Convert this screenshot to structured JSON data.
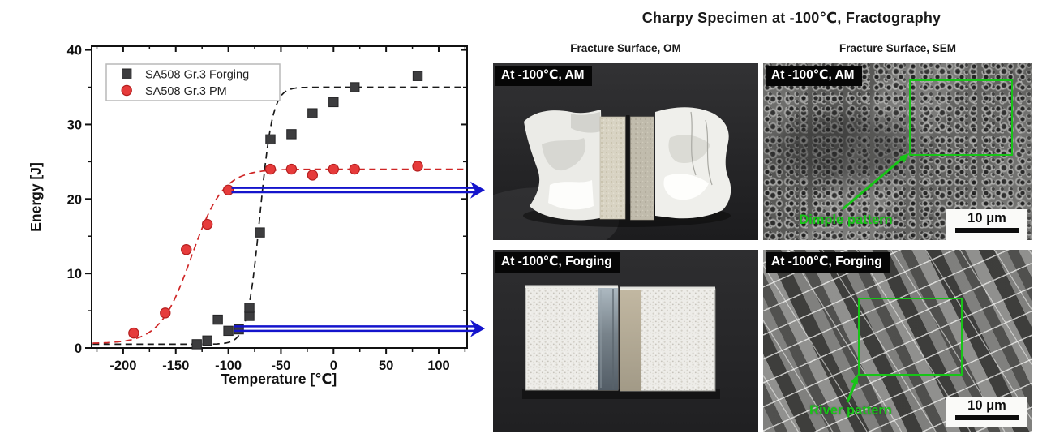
{
  "chart_data": {
    "type": "scatter",
    "title": "",
    "xlabel": "Temperature [℃]",
    "ylabel": "Energy [J]",
    "xlim": [
      -230,
      127
    ],
    "ylim": [
      0,
      40.5
    ],
    "x_ticks": [
      -200,
      -150,
      -100,
      -50,
      0,
      50,
      100
    ],
    "y_ticks": [
      0,
      10,
      20,
      30,
      40
    ],
    "x_minor_step": 25,
    "y_minor_step": 5,
    "grid": false,
    "legend_position": "top-left",
    "series": [
      {
        "name": "SA508 Gr.3 Forging",
        "marker": "square",
        "color": "#3d3d3f",
        "edge_color": "#242426",
        "line_color": "#1a1a1a",
        "line_style": "dashed",
        "points": [
          [
            -130,
            0.5
          ],
          [
            -120,
            1.0
          ],
          [
            -110,
            3.8
          ],
          [
            -100,
            2.3
          ],
          [
            -90,
            2.5
          ],
          [
            -80,
            4.3
          ],
          [
            -80,
            5.4
          ],
          [
            -70,
            15.5
          ],
          [
            -60,
            28.0
          ],
          [
            -40,
            28.7
          ],
          [
            -20,
            31.5
          ],
          [
            0,
            33.0
          ],
          [
            20,
            35.0
          ],
          [
            80,
            36.5
          ]
        ],
        "fit_sigmoid": {
          "lower": 0.5,
          "upper": 35.0,
          "t0": -70,
          "width": 6
        }
      },
      {
        "name": "SA508 Gr.3 PM",
        "marker": "circle",
        "color": "#e63b3b",
        "edge_color": "#b51f1f",
        "line_color": "#cf2626",
        "line_style": "dashed",
        "points": [
          [
            -190,
            2.0
          ],
          [
            -160,
            4.7
          ],
          [
            -140,
            13.2
          ],
          [
            -120,
            16.6
          ],
          [
            -100,
            21.2
          ],
          [
            -60,
            24.0
          ],
          [
            -40,
            24.0
          ],
          [
            -20,
            23.2
          ],
          [
            0,
            24.0
          ],
          [
            20,
            24.0
          ],
          [
            80,
            24.4
          ]
        ],
        "fit_sigmoid": {
          "lower": 0.6,
          "upper": 24.0,
          "t0": -135,
          "width": 15
        }
      }
    ],
    "arrows": [
      {
        "y": 21.2,
        "from_x": -97,
        "color": "#1414cc",
        "points_to": "AM fractography at -100℃"
      },
      {
        "y": 2.6,
        "from_x": -95,
        "color": "#1414cc",
        "points_to": "Forging fractography at -100℃"
      }
    ]
  },
  "right_figure": {
    "title": "Charpy Specimen at -100℃, Fractography",
    "column_headers": {
      "om": "Fracture Surface, OM",
      "sem": "Fracture Surface, SEM"
    },
    "annotation_color": "#17c517",
    "panels": {
      "om_am": {
        "label": "At -100℃, AM"
      },
      "sem_am": {
        "label": "At -100℃, AM",
        "annotation": "Dimple pattern",
        "scale_bar": "10 μm"
      },
      "om_forging": {
        "label": "At -100℃, Forging"
      },
      "sem_forging": {
        "label": "At -100℃, Forging",
        "annotation": "River pattern",
        "scale_bar": "10 μm"
      }
    }
  }
}
